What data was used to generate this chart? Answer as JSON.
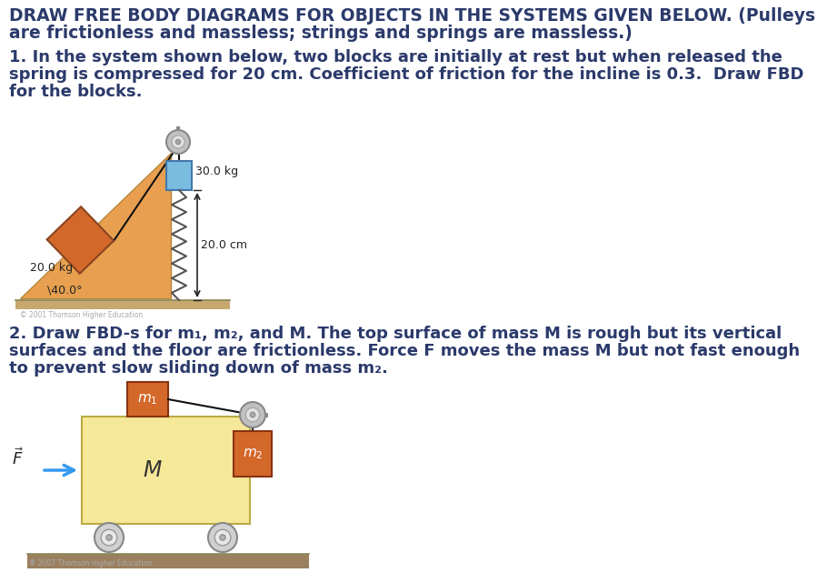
{
  "title_line1": "DRAW FREE BODY DIAGRAMS FOR OBJECTS IN THE SYSTEMS GIVEN BELOW. (Pulleys",
  "title_line2": "are frictionless and massless; strings and springs are massless.)",
  "problem1_line1": "1. In the system shown below, two blocks are initially at rest but when released the",
  "problem1_line2": "spring is compressed for 20 cm. Coefficient of friction for the incline is 0.3.  Draw FBD",
  "problem1_line3": "for the blocks.",
  "problem2_line1": "2. Draw FBD-s for m₁, m₂, and M. The top surface of mass M is rough but its vertical",
  "problem2_line2": "surfaces and the floor are frictionless. Force F moves the mass M but not fast enough",
  "problem2_line3": "to prevent slow sliding down of mass m₂.",
  "incline_color": "#E8A050",
  "block1_color": "#D4682A",
  "block2_color": "#7ABBE0",
  "mass1_label": "20.0 kg",
  "mass2_label": "30.0 kg",
  "spring_label": "20.0 cm",
  "angle_label": "\\40.0°",
  "cart_color": "#F5E898",
  "m1_block_color": "#D4682A",
  "m2_block_color": "#D4682A",
  "ground_color": "#9B8060",
  "string_color": "#111111",
  "arrow_color": "#3399EE",
  "text_color": "#2B3A6B",
  "copyright1": "© 2001 Thomson Higher Education",
  "copyright2": "® 2007 Thomson Higher Education",
  "bg_color": "#FFFFFF"
}
